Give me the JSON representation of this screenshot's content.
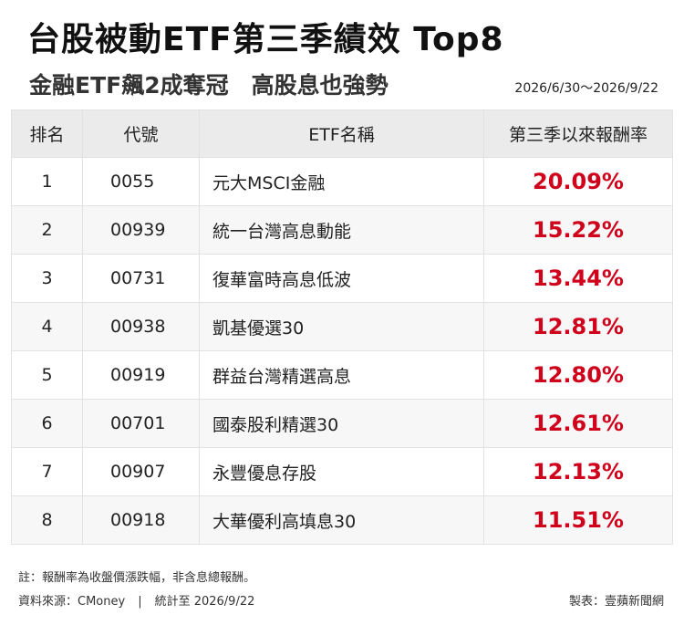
{
  "title": "台股被動ETF第三季績效 Top8",
  "subtitle": "金融ETF飆2成奪冠　高股息也強勢",
  "period": "2026/6/30～2026/9/22",
  "table": {
    "headers": [
      "排名",
      "代號",
      "ETF名稱",
      "第三季以來報酬率"
    ],
    "rows": [
      {
        "rank": "1",
        "code": "0055",
        "name": "元大MSCI金融",
        "return": "20.09%"
      },
      {
        "rank": "2",
        "code": "00939",
        "name": "統一台灣高息動能",
        "return": "15.22%"
      },
      {
        "rank": "3",
        "code": "00731",
        "name": "復華富時高息低波",
        "return": "13.44%"
      },
      {
        "rank": "4",
        "code": "00938",
        "name": "凱基優選30",
        "return": "12.81%"
      },
      {
        "rank": "5",
        "code": "00919",
        "name": "群益台灣精選高息",
        "return": "12.80%"
      },
      {
        "rank": "6",
        "code": "00701",
        "name": "國泰股利精選30",
        "return": "12.61%"
      },
      {
        "rank": "7",
        "code": "00907",
        "name": "永豐優息存股",
        "return": "12.13%"
      },
      {
        "rank": "8",
        "code": "00918",
        "name": "大華優利高填息30",
        "return": "11.51%"
      }
    ]
  },
  "footer": {
    "note": "註：報酬率為收盤價漲跌幅，非含息總報酬。",
    "source": "資料來源：CMoney",
    "separator": "|",
    "stat_date": "統計至 2026/9/22",
    "maker": "製表：壹蘋新聞網"
  },
  "colors": {
    "return_text": "#d0021b",
    "header_bg": "#ebebeb"
  }
}
